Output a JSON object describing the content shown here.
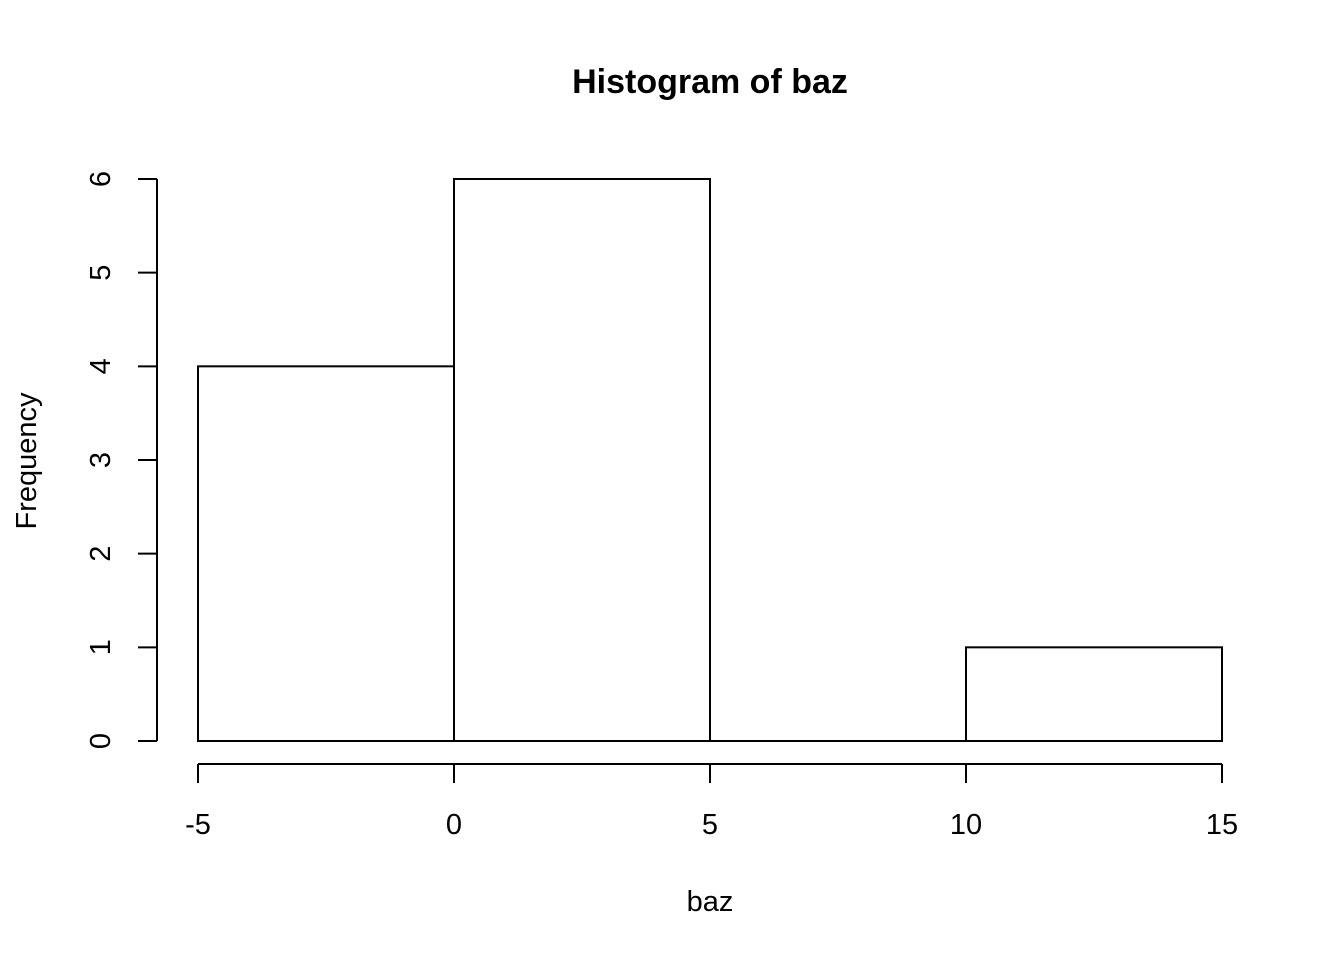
{
  "chart_data": {
    "type": "bar",
    "subtype": "histogram",
    "title": "Histogram of baz",
    "xlabel": "baz",
    "ylabel": "Frequency",
    "bins": [
      {
        "from": -5,
        "to": 0,
        "count": 4
      },
      {
        "from": 0,
        "to": 5,
        "count": 6
      },
      {
        "from": 5,
        "to": 10,
        "count": 0
      },
      {
        "from": 10,
        "to": 15,
        "count": 1
      }
    ],
    "xlim": [
      -5,
      15
    ],
    "ylim": [
      0,
      6
    ],
    "x_ticks": [
      "-5",
      "0",
      "5",
      "10",
      "15"
    ],
    "y_ticks": [
      "0",
      "1",
      "2",
      "3",
      "4",
      "5",
      "6"
    ],
    "grid": false,
    "legend": "none",
    "colors": {
      "bar_fill": "#ffffff",
      "bar_stroke": "#000000"
    }
  }
}
